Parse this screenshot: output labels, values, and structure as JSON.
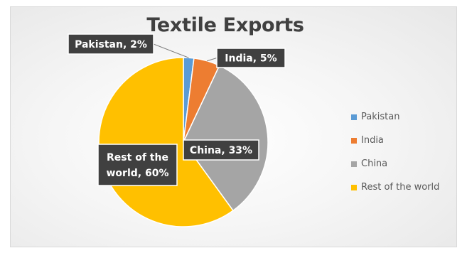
{
  "chart_data": {
    "type": "pie",
    "title": "Textile Exports",
    "categories": [
      "Pakistan",
      "India",
      "China",
      "Rest of the world"
    ],
    "values": [
      2,
      5,
      33,
      60
    ],
    "data_labels": [
      "Pakistan, 2%",
      "India, 5%",
      "China, 33%",
      "Rest of the\nworld, 60%"
    ],
    "colors": [
      "#5b9bd5",
      "#ed7d31",
      "#a5a5a5",
      "#ffc000"
    ],
    "start_angle_deg": 0,
    "direction": "clockwise",
    "legend": "right"
  },
  "legend_items": [
    {
      "label": "Pakistan",
      "color": "#5b9bd5"
    },
    {
      "label": "India",
      "color": "#ed7d31"
    },
    {
      "label": "China",
      "color": "#a5a5a5"
    },
    {
      "label": "Rest of the world",
      "color": "#ffc000"
    }
  ]
}
